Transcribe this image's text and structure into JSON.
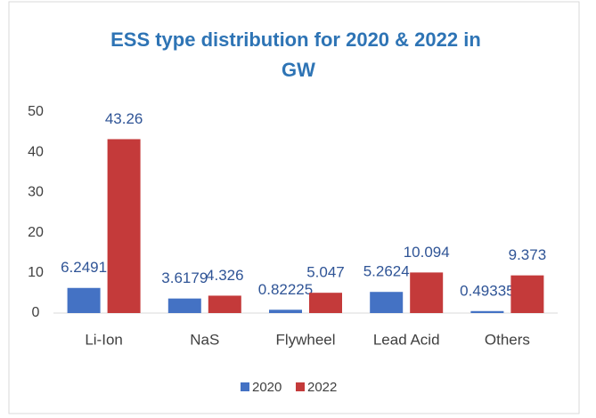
{
  "chart_data": {
    "type": "bar",
    "title": "ESS type distribution for 2020 & 2022 in GW",
    "categories": [
      "Li-Ion",
      "NaS",
      "Flywheel",
      "Lead Acid",
      "Others"
    ],
    "series": [
      {
        "name": "2020",
        "color": "#4472c4",
        "values": [
          6.2491,
          3.6179,
          0.82225,
          5.2624,
          0.49335
        ]
      },
      {
        "name": "2022",
        "color": "#c43a3a",
        "values": [
          43.26,
          4.326,
          5.047,
          10.094,
          9.373
        ]
      }
    ],
    "ylim": [
      0,
      50
    ],
    "yticks": [
      0,
      10,
      20,
      30,
      40,
      50
    ],
    "grid": false,
    "legend": "bottom"
  }
}
